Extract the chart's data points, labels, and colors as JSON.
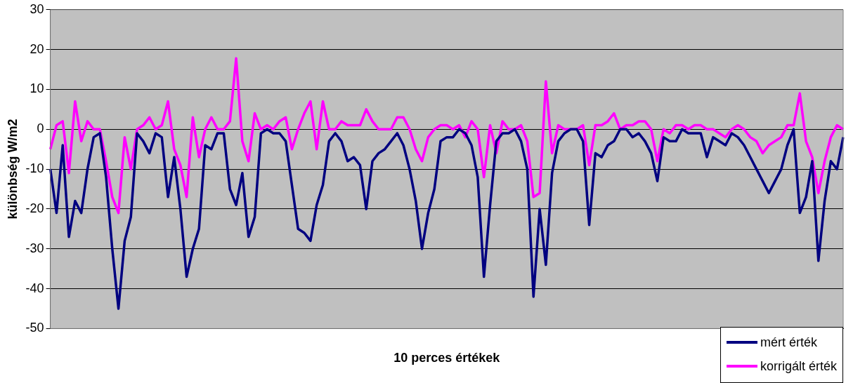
{
  "chart_data": {
    "type": "line",
    "xlabel": "10 perces értékek",
    "ylabel": "különbség W/m2",
    "categories": [
      null,
      null,
      null,
      null,
      null,
      null,
      null,
      null,
      null,
      null,
      null,
      null,
      null,
      null,
      null,
      null,
      null,
      null,
      null,
      null,
      null,
      null,
      null,
      null,
      null,
      null,
      null,
      null,
      null,
      null,
      null,
      null,
      null,
      null,
      null,
      null,
      null,
      null,
      null,
      null,
      null,
      null,
      null,
      null,
      null,
      null,
      null,
      null,
      null,
      null,
      null,
      null,
      null,
      null,
      null,
      null,
      null,
      null,
      null,
      null,
      null,
      null,
      null,
      null,
      null,
      null,
      null,
      null,
      null,
      null,
      null,
      null,
      null,
      null,
      null,
      null,
      null,
      null,
      null,
      null,
      null,
      null,
      null,
      null,
      null,
      null,
      null,
      null,
      null,
      null,
      null,
      null,
      null,
      null,
      null,
      null,
      null,
      null,
      null,
      null,
      null,
      null,
      null,
      null,
      null,
      null,
      null,
      null,
      null,
      null,
      null,
      null,
      null,
      null,
      null,
      null,
      null,
      null,
      null,
      null,
      null,
      null,
      null,
      null,
      null,
      null,
      null,
      null,
      null
    ],
    "series": [
      {
        "name": "mért érték",
        "color": "#000080",
        "values": [
          -10,
          -21,
          -4,
          -27,
          -18,
          -21,
          -10,
          -2,
          -1,
          -12,
          -30,
          -45,
          -28,
          -22,
          -1,
          -3,
          -6,
          -1,
          -2,
          -17,
          -7,
          -20,
          -37,
          -30,
          -25,
          -4,
          -5,
          -1,
          -1,
          -15,
          -19,
          -11,
          -27,
          -22,
          -1,
          0,
          -1,
          -1,
          -3,
          -14,
          -25,
          -26,
          -28,
          -19,
          -14,
          -3,
          -1,
          -3,
          -8,
          -7,
          -9,
          -20,
          -8,
          -6,
          -5,
          -3,
          -1,
          -4,
          -10,
          -18,
          -30,
          -21,
          -15,
          -3,
          -2,
          -2,
          0,
          -1,
          -4,
          -12,
          -37,
          -19,
          -3,
          -1,
          -1,
          0,
          -3,
          -10,
          -42,
          -20,
          -34,
          -11,
          -3,
          -1,
          0,
          0,
          -3,
          -24,
          -6,
          -7,
          -4,
          -3,
          0,
          0,
          -2,
          -1,
          -3,
          -6,
          -13,
          -2,
          -3,
          -3,
          0,
          -1,
          -1,
          -1,
          -7,
          -2,
          -3,
          -4,
          -1,
          -2,
          -4,
          -7,
          -10,
          -13,
          -16,
          -13,
          -10,
          -4,
          0,
          -21,
          -17,
          -8,
          -33,
          -18,
          -8,
          -10,
          -2
        ]
      },
      {
        "name": "korrigált érték",
        "color": "#ff00ff",
        "values": [
          -5,
          1,
          2,
          -11,
          7,
          -3,
          2,
          0,
          0,
          -8,
          -17,
          -21,
          -2,
          -10,
          0,
          1,
          3,
          0,
          1,
          7,
          -5,
          -9,
          -17,
          3,
          -7,
          0,
          3,
          0,
          0,
          2,
          17.8,
          -3,
          -8,
          4,
          0,
          1,
          0,
          2,
          3,
          -5,
          0,
          4,
          7,
          -5,
          7,
          0,
          0,
          2,
          1,
          1,
          1,
          5,
          2,
          0,
          0,
          0,
          3,
          3,
          0,
          -5,
          -8,
          -2,
          0,
          1,
          1,
          0,
          1,
          -2,
          2,
          0,
          -12,
          1,
          -6,
          2,
          0,
          0,
          1,
          -3,
          -17,
          -16,
          12,
          -6,
          1,
          0,
          0,
          0,
          1,
          -9,
          1,
          1,
          2,
          4,
          0,
          1,
          1,
          2,
          2,
          0,
          -8,
          0,
          -1,
          1,
          1,
          0,
          1,
          1,
          0,
          0,
          -1,
          -2,
          0,
          1,
          0,
          -2,
          -3,
          -6,
          -4,
          -3,
          -2,
          1,
          1,
          9,
          -3,
          -7,
          -16,
          -8,
          -2,
          1,
          0
        ]
      }
    ],
    "ylim": [
      -50,
      30
    ],
    "yticks": [
      -50,
      -40,
      -30,
      -20,
      -10,
      0,
      10,
      20,
      30
    ],
    "grid": "y",
    "legend": "bottom right",
    "tick_labels": "y",
    "marker": "none",
    "line_style": "solid"
  }
}
